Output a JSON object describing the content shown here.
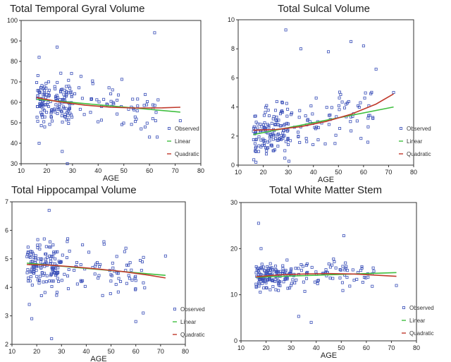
{
  "chart_data": [
    {
      "type": "scatter",
      "title": "Total Temporal Gyral Volume",
      "xlabel": "AGE",
      "xlim": [
        10,
        80
      ],
      "ylim": [
        30,
        100
      ],
      "xticks": [
        "10",
        "20",
        "30",
        "40",
        "50",
        "60",
        "70",
        "80"
      ],
      "yticks": [
        "30",
        "40",
        "50",
        "60",
        "70",
        "80",
        "90",
        "100"
      ],
      "legend": [
        "Observed",
        "Linear",
        "Quadratic"
      ],
      "legend_position": "right",
      "colors": {
        "observed": "#3a4fb8",
        "linear": "#3fbf3f",
        "quadratic": "#c0392b"
      },
      "linear": {
        "x": [
          16,
          72
        ],
        "y": [
          61.5,
          55.2
        ]
      },
      "quadratic": {
        "x": [
          16,
          25,
          35,
          45,
          55,
          65,
          72
        ],
        "y": [
          62.3,
          60.2,
          58.6,
          57.6,
          57.2,
          57.3,
          57.6
        ]
      },
      "observed": {
        "n": 210,
        "mean": 59,
        "sd": 9,
        "outliers": [
          [
            62,
            94
          ],
          [
            17,
            82
          ],
          [
            24,
            87
          ],
          [
            26,
            36
          ],
          [
            28,
            30
          ],
          [
            17,
            40
          ],
          [
            60,
            43
          ],
          [
            63,
            43
          ],
          [
            72,
            51
          ]
        ]
      }
    },
    {
      "type": "scatter",
      "title": "Total Sulcal Volume",
      "xlabel": "AGE",
      "xlim": [
        10,
        80
      ],
      "ylim": [
        0,
        10
      ],
      "xticks": [
        "10",
        "20",
        "30",
        "40",
        "50",
        "60",
        "70",
        "80"
      ],
      "yticks": [
        "0",
        "2",
        "4",
        "6",
        "8",
        "10"
      ],
      "legend": [
        "Observed",
        "Linear",
        "Quadratic"
      ],
      "legend_position": "right",
      "colors": {
        "observed": "#3a4fb8",
        "linear": "#3fbf3f",
        "quadratic": "#c0392b"
      },
      "linear": {
        "x": [
          16,
          72
        ],
        "y": [
          2.1,
          4.0
        ]
      },
      "quadratic": {
        "x": [
          16,
          25,
          35,
          45,
          55,
          65,
          72
        ],
        "y": [
          2.4,
          2.45,
          2.65,
          3.0,
          3.5,
          4.2,
          4.9
        ]
      },
      "observed": {
        "n": 210,
        "mean": 2.8,
        "sd": 1.4,
        "outliers": [
          [
            29,
            9.3
          ],
          [
            55,
            8.5
          ],
          [
            60,
            8.2
          ],
          [
            35,
            8.0
          ],
          [
            46,
            7.8
          ],
          [
            65,
            6.6
          ],
          [
            72,
            5.0
          ]
        ]
      }
    },
    {
      "type": "scatter",
      "title": "Total Hippocampal Volume",
      "xlabel": "AGE",
      "xlim": [
        10,
        80
      ],
      "ylim": [
        2,
        7
      ],
      "xticks": [
        "10",
        "20",
        "30",
        "40",
        "50",
        "60",
        "70",
        "80"
      ],
      "yticks": [
        "2",
        "3",
        "4",
        "5",
        "6",
        "7"
      ],
      "legend": [
        "Observed",
        "Linear",
        "Quadratic"
      ],
      "legend_position": "right",
      "colors": {
        "observed": "#3a4fb8",
        "linear": "#3fbf3f",
        "quadratic": "#c0392b"
      },
      "linear": {
        "x": [
          16,
          72
        ],
        "y": [
          4.85,
          4.42
        ]
      },
      "quadratic": {
        "x": [
          16,
          25,
          35,
          45,
          55,
          65,
          72
        ],
        "y": [
          4.8,
          4.78,
          4.72,
          4.64,
          4.55,
          4.43,
          4.33
        ]
      },
      "observed": {
        "n": 210,
        "mean": 4.6,
        "sd": 0.65,
        "outliers": [
          [
            25,
            6.7
          ],
          [
            26,
            2.2
          ],
          [
            18,
            2.9
          ],
          [
            63,
            3.1
          ],
          [
            60,
            2.8
          ],
          [
            72,
            5.1
          ],
          [
            17,
            3.4
          ]
        ]
      }
    },
    {
      "type": "scatter",
      "title": "Total White Matter Stem",
      "xlabel": "AGE",
      "xlim": [
        10,
        80
      ],
      "ylim": [
        0,
        30
      ],
      "xticks": [
        "10",
        "20",
        "30",
        "40",
        "50",
        "60",
        "70",
        "80"
      ],
      "yticks": [
        "0",
        "10",
        "20",
        "30"
      ],
      "legend": [
        "Observed",
        "Linear",
        "Quadratic"
      ],
      "legend_position": "right",
      "colors": {
        "observed": "#3a4fb8",
        "linear": "#3fbf3f",
        "quadratic": "#c0392b"
      },
      "linear": {
        "x": [
          16,
          72
        ],
        "y": [
          13.8,
          14.8
        ]
      },
      "quadratic": {
        "x": [
          16,
          25,
          35,
          45,
          55,
          65,
          72
        ],
        "y": [
          13.9,
          14.3,
          14.5,
          14.6,
          14.5,
          14.2,
          14.0
        ]
      },
      "observed": {
        "n": 210,
        "mean": 14.2,
        "sd": 2.6,
        "outliers": [
          [
            17,
            25.5
          ],
          [
            51,
            22.8
          ],
          [
            33,
            5.3
          ],
          [
            38,
            4.0
          ],
          [
            72,
            12.0
          ],
          [
            18,
            20.0
          ]
        ]
      }
    }
  ]
}
